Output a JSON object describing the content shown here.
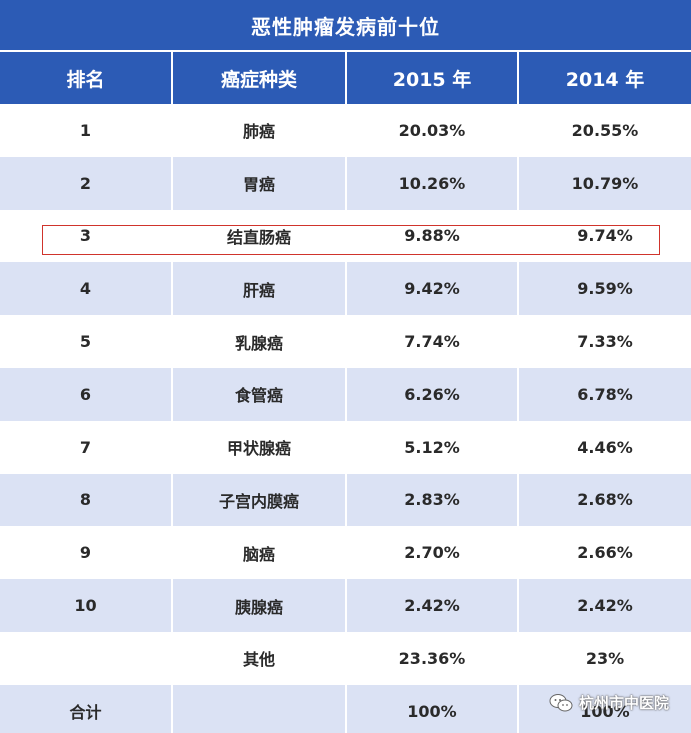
{
  "title": "恶性肿瘤发病前十位",
  "table": {
    "headers": [
      "排名",
      "癌症种类",
      "2015 年",
      "2014 年"
    ],
    "rows": [
      {
        "rank": "1",
        "cancer": "肺癌",
        "y2015": "20.03%",
        "y2014": "20.55%"
      },
      {
        "rank": "2",
        "cancer": "胃癌",
        "y2015": "10.26%",
        "y2014": "10.79%"
      },
      {
        "rank": "3",
        "cancer": "结直肠癌",
        "y2015": "9.88%",
        "y2014": "9.74%"
      },
      {
        "rank": "4",
        "cancer": "肝癌",
        "y2015": "9.42%",
        "y2014": "9.59%"
      },
      {
        "rank": "5",
        "cancer": "乳腺癌",
        "y2015": "7.74%",
        "y2014": "7.33%"
      },
      {
        "rank": "6",
        "cancer": "食管癌",
        "y2015": "6.26%",
        "y2014": "6.78%"
      },
      {
        "rank": "7",
        "cancer": "甲状腺癌",
        "y2015": "5.12%",
        "y2014": "4.46%"
      },
      {
        "rank": "8",
        "cancer": "子宫内膜癌",
        "y2015": "2.83%",
        "y2014": "2.68%"
      },
      {
        "rank": "9",
        "cancer": "脑癌",
        "y2015": "2.70%",
        "y2014": "2.66%"
      },
      {
        "rank": "10",
        "cancer": "胰腺癌",
        "y2015": "2.42%",
        "y2014": "2.42%"
      },
      {
        "rank": "",
        "cancer": "其他",
        "y2015": "23.36%",
        "y2014": "23%"
      },
      {
        "rank": "合计",
        "cancer": "",
        "y2015": "100%",
        "y2014": "100%"
      }
    ]
  },
  "watermark": {
    "text": "杭州市中医院",
    "icon": "wechat-icon"
  },
  "colors": {
    "header_bg": "#2c5bb5",
    "stripe_bg": "#dbe2f4",
    "highlight_border": "#d0342c"
  }
}
